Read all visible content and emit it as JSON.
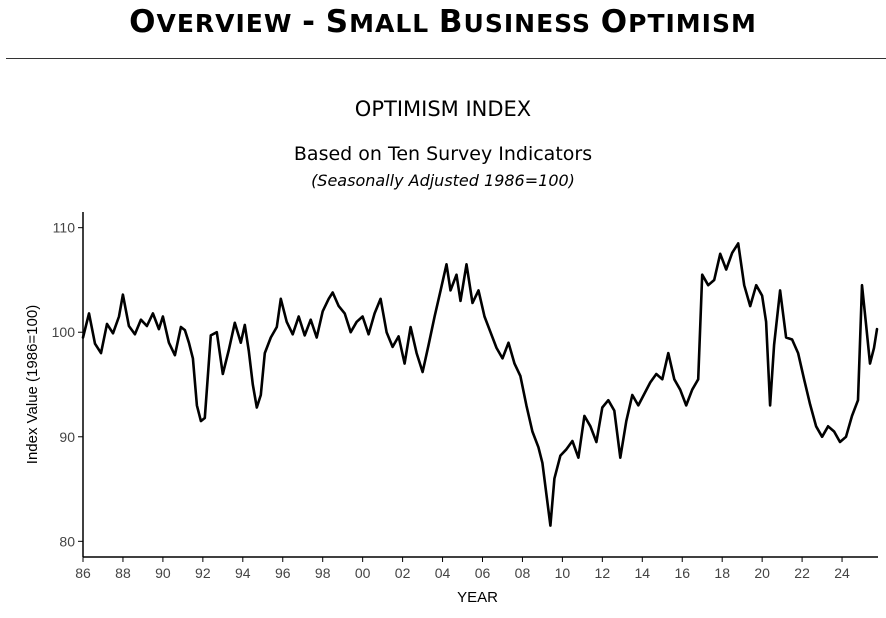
{
  "header": {
    "title_words": [
      {
        "cap": "O",
        "rest": "VERVIEW"
      },
      {
        "cap": "-",
        "rest": ""
      },
      {
        "cap": "S",
        "rest": "MALL"
      },
      {
        "cap": "B",
        "rest": "USINESS"
      },
      {
        "cap": "O",
        "rest": "PTIMISM"
      }
    ]
  },
  "chart_data": {
    "type": "line",
    "title": "OPTIMISM INDEX",
    "subtitle": "Based on Ten Survey Indicators",
    "note": "(Seasonally Adjusted 1986=100)",
    "xlabel": "YEAR",
    "ylabel": "Index Value (1986=100)",
    "xlim": [
      1986,
      2025.8
    ],
    "ylim": [
      78.5,
      111.5
    ],
    "yticks": [
      80,
      90,
      100,
      110
    ],
    "xticks": [
      1986,
      1988,
      1990,
      1992,
      1994,
      1996,
      1998,
      2000,
      2002,
      2004,
      2006,
      2008,
      2010,
      2012,
      2014,
      2016,
      2018,
      2020,
      2022,
      2024
    ],
    "xtick_labels": [
      "86",
      "88",
      "90",
      "92",
      "94",
      "96",
      "98",
      "00",
      "02",
      "04",
      "06",
      "08",
      "10",
      "12",
      "14",
      "16",
      "18",
      "20",
      "22",
      "24"
    ],
    "series": [
      {
        "name": "Optimism Index",
        "color": "#000000",
        "points": [
          [
            1986.0,
            99.5
          ],
          [
            1986.3,
            101.8
          ],
          [
            1986.6,
            98.9
          ],
          [
            1986.9,
            98.0
          ],
          [
            1987.2,
            100.8
          ],
          [
            1987.5,
            99.9
          ],
          [
            1987.8,
            101.5
          ],
          [
            1988.0,
            103.6
          ],
          [
            1988.3,
            100.6
          ],
          [
            1988.6,
            99.8
          ],
          [
            1988.9,
            101.2
          ],
          [
            1989.2,
            100.6
          ],
          [
            1989.5,
            101.8
          ],
          [
            1989.8,
            100.3
          ],
          [
            1990.0,
            101.5
          ],
          [
            1990.3,
            99.0
          ],
          [
            1990.6,
            97.8
          ],
          [
            1990.9,
            100.5
          ],
          [
            1991.1,
            100.2
          ],
          [
            1991.3,
            99.0
          ],
          [
            1991.5,
            97.5
          ],
          [
            1991.7,
            93.0
          ],
          [
            1991.9,
            91.5
          ],
          [
            1992.1,
            91.8
          ],
          [
            1992.4,
            99.7
          ],
          [
            1992.7,
            100.0
          ],
          [
            1993.0,
            96.0
          ],
          [
            1993.3,
            98.3
          ],
          [
            1993.6,
            100.9
          ],
          [
            1993.9,
            99.0
          ],
          [
            1994.1,
            100.7
          ],
          [
            1994.3,
            98.2
          ],
          [
            1994.5,
            95.0
          ],
          [
            1994.7,
            92.8
          ],
          [
            1994.9,
            94.0
          ],
          [
            1995.1,
            98.0
          ],
          [
            1995.4,
            99.5
          ],
          [
            1995.7,
            100.5
          ],
          [
            1995.9,
            103.2
          ],
          [
            1996.2,
            101.0
          ],
          [
            1996.5,
            99.8
          ],
          [
            1996.8,
            101.5
          ],
          [
            1997.1,
            99.7
          ],
          [
            1997.4,
            101.2
          ],
          [
            1997.7,
            99.5
          ],
          [
            1998.0,
            102.0
          ],
          [
            1998.3,
            103.2
          ],
          [
            1998.5,
            103.8
          ],
          [
            1998.8,
            102.5
          ],
          [
            1999.1,
            101.8
          ],
          [
            1999.4,
            100.0
          ],
          [
            1999.7,
            101.0
          ],
          [
            2000.0,
            101.5
          ],
          [
            2000.3,
            99.8
          ],
          [
            2000.6,
            101.8
          ],
          [
            2000.9,
            103.2
          ],
          [
            2001.2,
            100.0
          ],
          [
            2001.5,
            98.6
          ],
          [
            2001.8,
            99.6
          ],
          [
            2002.1,
            97.0
          ],
          [
            2002.4,
            100.5
          ],
          [
            2002.7,
            98.0
          ],
          [
            2003.0,
            96.2
          ],
          [
            2003.3,
            98.8
          ],
          [
            2003.6,
            101.5
          ],
          [
            2003.9,
            104.0
          ],
          [
            2004.2,
            106.5
          ],
          [
            2004.4,
            104.0
          ],
          [
            2004.7,
            105.5
          ],
          [
            2004.9,
            103.0
          ],
          [
            2005.2,
            106.5
          ],
          [
            2005.5,
            102.8
          ],
          [
            2005.8,
            104.0
          ],
          [
            2006.1,
            101.5
          ],
          [
            2006.4,
            100.0
          ],
          [
            2006.7,
            98.5
          ],
          [
            2007.0,
            97.5
          ],
          [
            2007.3,
            99.0
          ],
          [
            2007.6,
            97.0
          ],
          [
            2007.9,
            95.8
          ],
          [
            2008.2,
            93.0
          ],
          [
            2008.5,
            90.5
          ],
          [
            2008.8,
            89.0
          ],
          [
            2009.0,
            87.5
          ],
          [
            2009.2,
            84.5
          ],
          [
            2009.4,
            81.5
          ],
          [
            2009.6,
            86.0
          ],
          [
            2009.9,
            88.2
          ],
          [
            2010.2,
            88.8
          ],
          [
            2010.5,
            89.6
          ],
          [
            2010.8,
            88.0
          ],
          [
            2011.1,
            92.0
          ],
          [
            2011.4,
            91.0
          ],
          [
            2011.7,
            89.5
          ],
          [
            2012.0,
            92.8
          ],
          [
            2012.3,
            93.5
          ],
          [
            2012.6,
            92.5
          ],
          [
            2012.9,
            88.0
          ],
          [
            2013.2,
            91.5
          ],
          [
            2013.5,
            94.0
          ],
          [
            2013.8,
            93.0
          ],
          [
            2014.1,
            94.1
          ],
          [
            2014.4,
            95.2
          ],
          [
            2014.7,
            96.0
          ],
          [
            2015.0,
            95.5
          ],
          [
            2015.3,
            98.0
          ],
          [
            2015.6,
            95.5
          ],
          [
            2015.9,
            94.5
          ],
          [
            2016.2,
            93.0
          ],
          [
            2016.5,
            94.5
          ],
          [
            2016.8,
            95.5
          ],
          [
            2017.0,
            105.5
          ],
          [
            2017.3,
            104.5
          ],
          [
            2017.6,
            105.0
          ],
          [
            2017.9,
            107.5
          ],
          [
            2018.2,
            106.0
          ],
          [
            2018.5,
            107.6
          ],
          [
            2018.8,
            108.5
          ],
          [
            2019.1,
            104.5
          ],
          [
            2019.4,
            102.5
          ],
          [
            2019.7,
            104.5
          ],
          [
            2020.0,
            103.5
          ],
          [
            2020.2,
            101.0
          ],
          [
            2020.4,
            93.0
          ],
          [
            2020.6,
            98.8
          ],
          [
            2020.9,
            104.0
          ],
          [
            2021.2,
            99.5
          ],
          [
            2021.5,
            99.3
          ],
          [
            2021.8,
            98.0
          ],
          [
            2022.1,
            95.5
          ],
          [
            2022.4,
            93.1
          ],
          [
            2022.7,
            91.0
          ],
          [
            2023.0,
            90.0
          ],
          [
            2023.3,
            91.0
          ],
          [
            2023.6,
            90.5
          ],
          [
            2023.9,
            89.5
          ],
          [
            2024.2,
            90.0
          ],
          [
            2024.5,
            92.0
          ],
          [
            2024.8,
            93.5
          ],
          [
            2025.0,
            104.5
          ],
          [
            2025.2,
            100.8
          ],
          [
            2025.4,
            97.0
          ],
          [
            2025.6,
            98.5
          ],
          [
            2025.75,
            100.3
          ]
        ]
      }
    ]
  }
}
